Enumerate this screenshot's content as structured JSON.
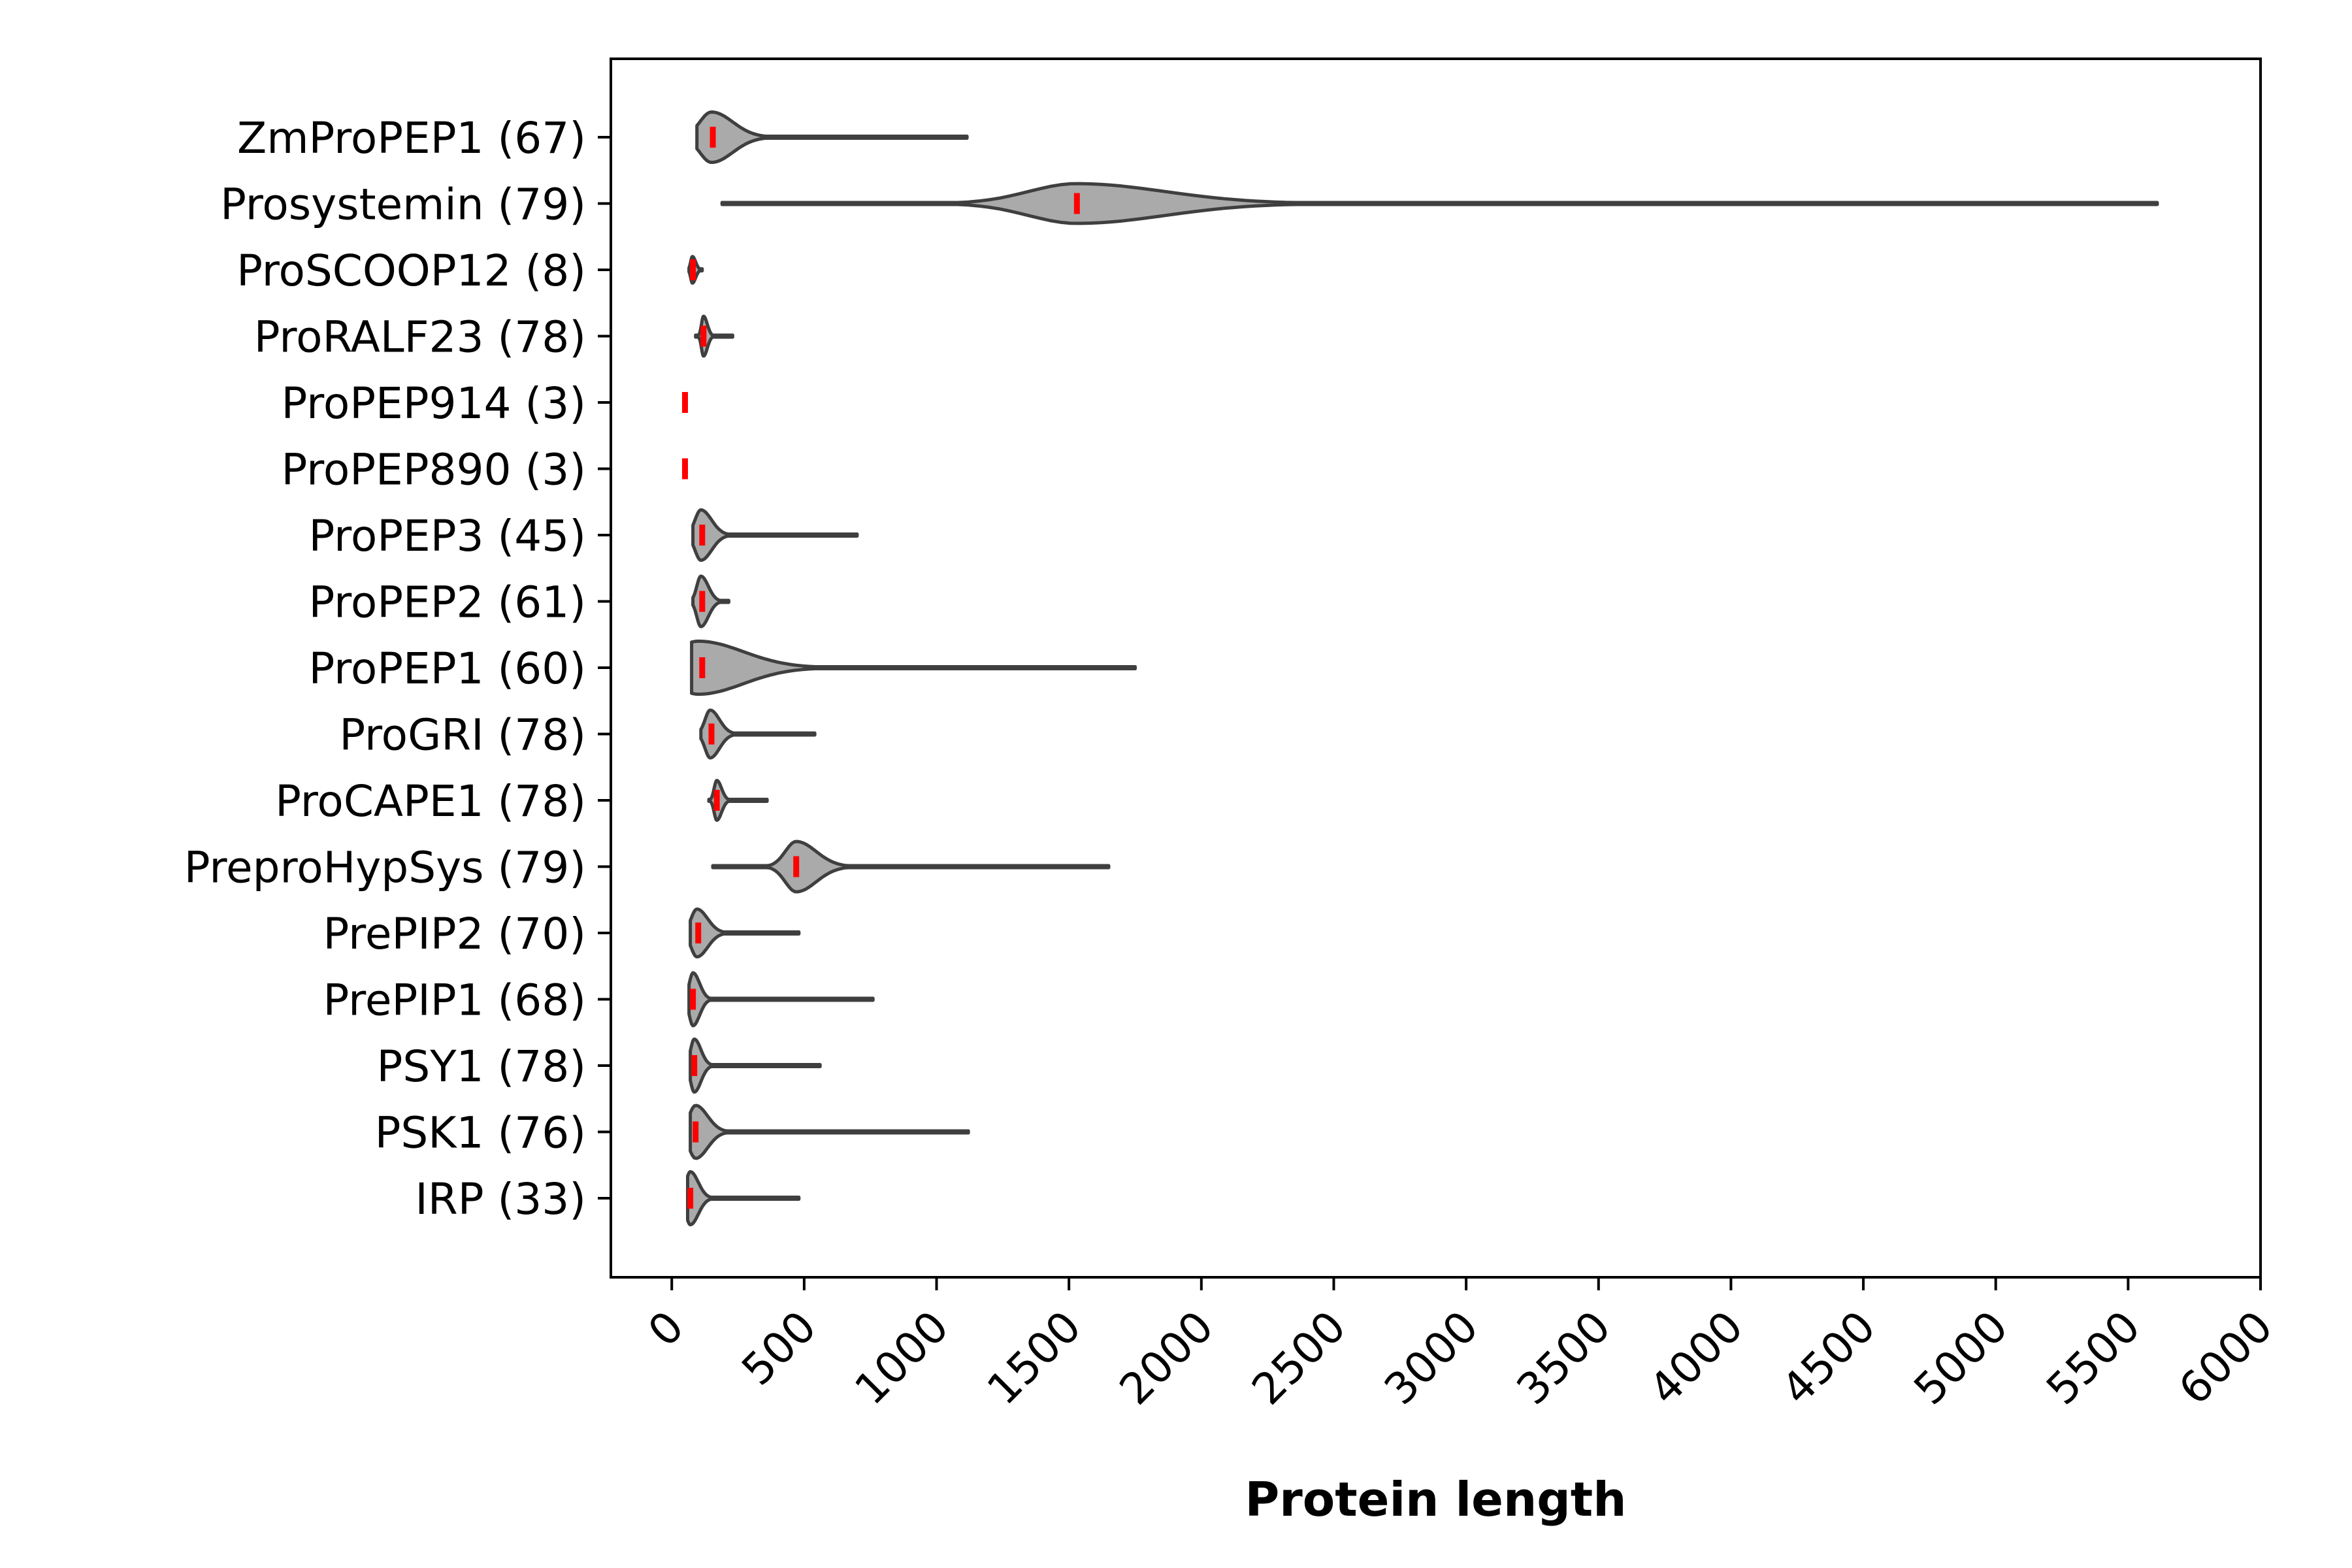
{
  "chart_data": {
    "type": "violin",
    "orientation": "horizontal",
    "title": "",
    "xlabel": "Protein length",
    "ylabel": "",
    "xlim": [
      -230,
      6000
    ],
    "xticks": [
      0,
      500,
      1000,
      1500,
      2000,
      2500,
      3000,
      3500,
      4000,
      4500,
      5000,
      5500,
      6000
    ],
    "xtick_labels": [
      "0",
      "500",
      "1000",
      "1500",
      "2000",
      "2500",
      "3000",
      "3500",
      "4000",
      "4500",
      "5000",
      "5500",
      "6000"
    ],
    "grid": false,
    "legend": "none",
    "colors": {
      "violin_fill": "#aaaaaa",
      "violin_edge": "#3f3f3f",
      "median": "#ff0000"
    },
    "categories": [
      {
        "label": "ZmProPEP1 (67)",
        "min": 95,
        "max": 1115,
        "median": 155,
        "mode": 150,
        "spread": 80,
        "halfwidth": 0.38
      },
      {
        "label": "Prosystemin (79)",
        "min": 190,
        "max": 5610,
        "median": 1530,
        "mode": 1530,
        "spread": 330,
        "halfwidth": 0.3
      },
      {
        "label": "ProSCOOP12 (8)",
        "min": 65,
        "max": 115,
        "median": 80,
        "mode": 78,
        "spread": 12,
        "halfwidth": 0.2
      },
      {
        "label": "ProRALF23 (78)",
        "min": 90,
        "max": 230,
        "median": 120,
        "mode": 120,
        "spread": 14,
        "halfwidth": 0.3
      },
      {
        "label": "ProPEP914 (3)",
        "min": 45,
        "max": 55,
        "median": 50,
        "mode": 50,
        "spread": 4,
        "halfwidth": 0.1
      },
      {
        "label": "ProPEP890 (3)",
        "min": 45,
        "max": 55,
        "median": 50,
        "mode": 50,
        "spread": 4,
        "halfwidth": 0.1
      },
      {
        "label": "ProPEP3 (45)",
        "min": 80,
        "max": 700,
        "median": 115,
        "mode": 110,
        "spread": 40,
        "halfwidth": 0.38
      },
      {
        "label": "ProPEP2 (61)",
        "min": 80,
        "max": 215,
        "median": 115,
        "mode": 110,
        "spread": 28,
        "halfwidth": 0.38
      },
      {
        "label": "ProPEP1 (60)",
        "min": 75,
        "max": 1750,
        "median": 115,
        "mode": 100,
        "spread": 170,
        "halfwidth": 0.4
      },
      {
        "label": "ProGRI (78)",
        "min": 110,
        "max": 540,
        "median": 150,
        "mode": 145,
        "spread": 35,
        "halfwidth": 0.36
      },
      {
        "label": "ProCAPE1 (78)",
        "min": 140,
        "max": 360,
        "median": 170,
        "mode": 170,
        "spread": 18,
        "halfwidth": 0.3
      },
      {
        "label": "PreproHypSys (79)",
        "min": 155,
        "max": 1650,
        "median": 470,
        "mode": 470,
        "spread": 75,
        "halfwidth": 0.38
      },
      {
        "label": "PrePIP2 (70)",
        "min": 70,
        "max": 480,
        "median": 100,
        "mode": 95,
        "spread": 40,
        "halfwidth": 0.36
      },
      {
        "label": "PrePIP1 (68)",
        "min": 65,
        "max": 760,
        "median": 80,
        "mode": 80,
        "spread": 25,
        "halfwidth": 0.4
      },
      {
        "label": "PSY1 (78)",
        "min": 70,
        "max": 560,
        "median": 85,
        "mode": 85,
        "spread": 25,
        "halfwidth": 0.4
      },
      {
        "label": "PSK1 (76)",
        "min": 70,
        "max": 1120,
        "median": 90,
        "mode": 90,
        "spread": 45,
        "halfwidth": 0.4
      },
      {
        "label": "IRP (33)",
        "min": 60,
        "max": 480,
        "median": 70,
        "mode": 70,
        "spread": 30,
        "halfwidth": 0.4
      }
    ]
  }
}
